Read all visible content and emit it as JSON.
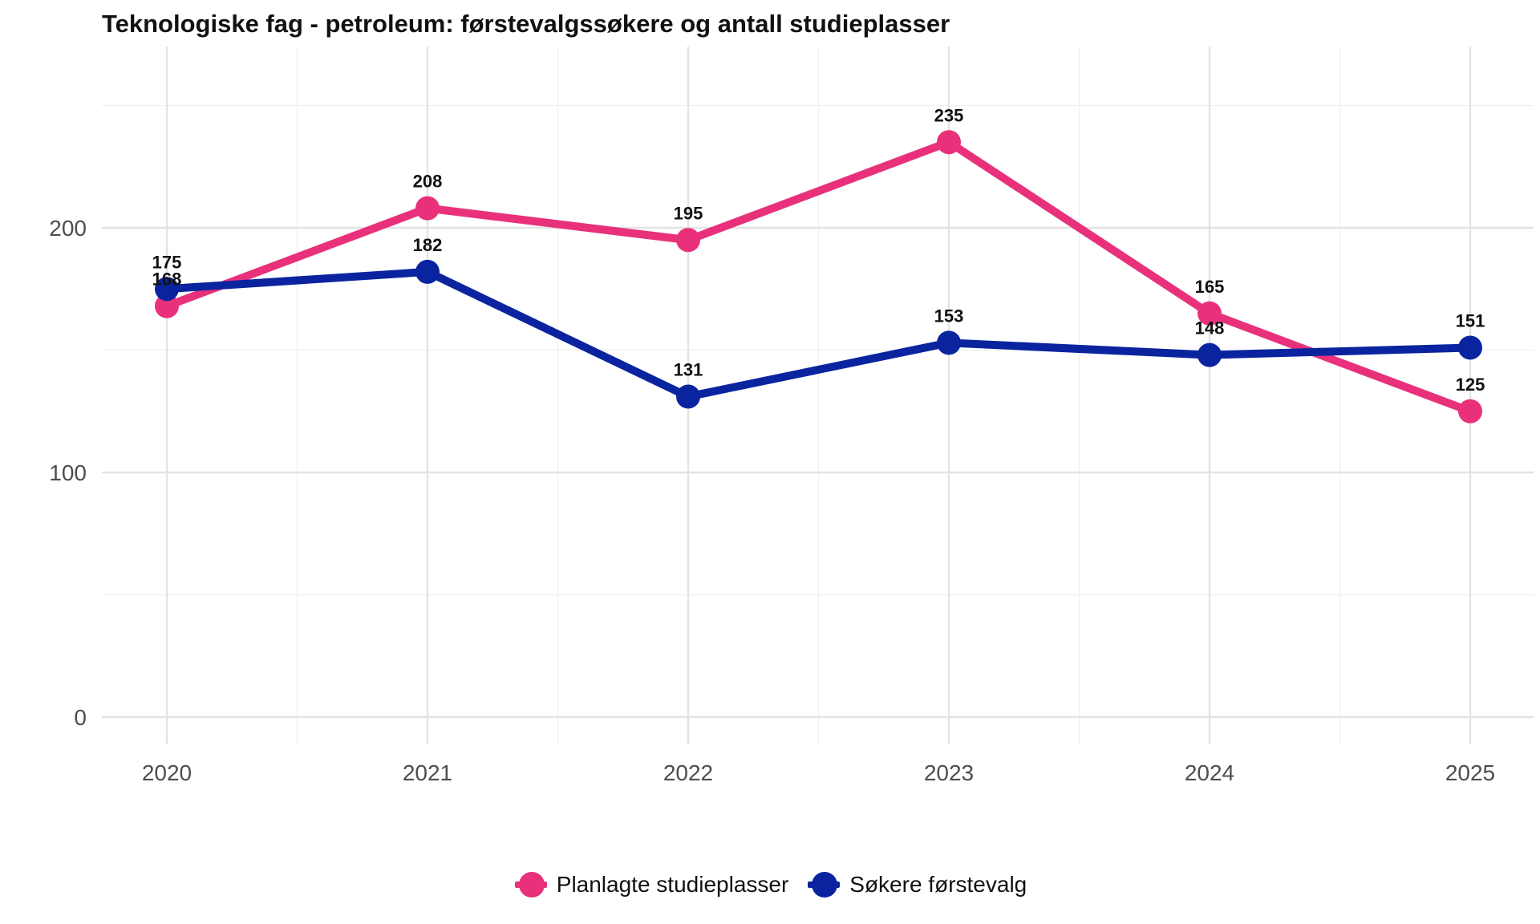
{
  "chart_data": {
    "type": "line",
    "title": "Teknologiske fag - petroleum: førstevalgssøkere og antall studieplasser",
    "xlabel": "",
    "ylabel": "",
    "categories": [
      "2020",
      "2021",
      "2022",
      "2023",
      "2024",
      "2025"
    ],
    "y_ticks": [
      "0",
      "100",
      "200"
    ],
    "ylim": [
      -12,
      275
    ],
    "grid": true,
    "legend_position": "bottom",
    "series": [
      {
        "name": "Planlagte studieplasser",
        "color": "#E8317A",
        "values": [
          168,
          208,
          195,
          235,
          165,
          125
        ],
        "labels": [
          "168",
          "208",
          "195",
          "235",
          "165",
          "125"
        ]
      },
      {
        "name": "Søkere førstevalg",
        "color": "#0A24A0",
        "values": [
          175,
          182,
          131,
          153,
          148,
          151
        ],
        "labels": [
          "175",
          "182",
          "131",
          "153",
          "148",
          "151"
        ]
      }
    ]
  }
}
